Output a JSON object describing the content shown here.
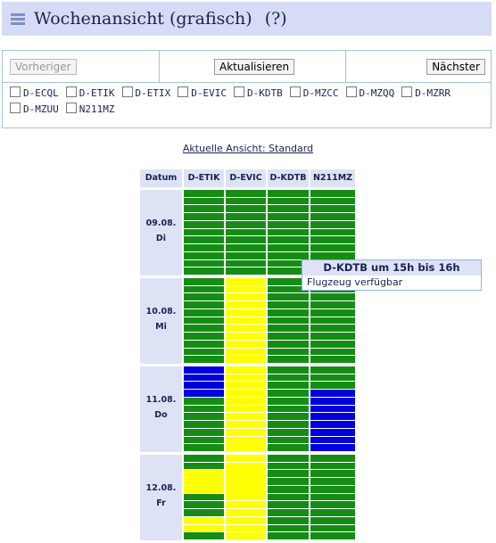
{
  "header": {
    "title": "Wochenansicht (grafisch)",
    "help": "(?)"
  },
  "nav": {
    "prev_label": "Vorheriger",
    "refresh_label": "Aktualisieren",
    "next_label": "Nächster"
  },
  "aircraft": [
    "D-ECQL",
    "D-ETIK",
    "D-ETIX",
    "D-EVIC",
    "D-KDTB",
    "D-MZCC",
    "D-MZQQ",
    "D-MZRR",
    "D-MZUU",
    "N211MZ"
  ],
  "view_link": "Aktuelle Ansicht: Standard",
  "schedule": {
    "date_header": "Datum",
    "columns": [
      "D-ETIK",
      "D-EVIC",
      "D-KDTB",
      "N211MZ"
    ],
    "days": [
      {
        "date": "09.08.",
        "weekday": "Di",
        "slots": [
          "GGGGGGGGGGG",
          "GGGGGGGGGGG",
          "GGGGGGGGGGG",
          "GGGGGGGGGGG"
        ]
      },
      {
        "date": "10.08.",
        "weekday": "Mi",
        "slots": [
          "GGGGGGGGGGG",
          "YYYYYYYYYYY",
          "GGGGGGGGGGG",
          "GGGGGGGGGGG"
        ]
      },
      {
        "date": "11.08.",
        "weekday": "Do",
        "slots": [
          "BBBBGGGGGGG",
          "YYYYYYYYYYY",
          "GGGGGGGGGGG",
          "GGGBBBBBBBB"
        ]
      },
      {
        "date": "12.08.",
        "weekday": "Fr",
        "slots": [
          "GGYYYGGGYYG",
          "YYYYYYYYYYY",
          "GGGGGGGGGGG",
          "GGGGGGGGGGG"
        ]
      }
    ],
    "status_colors": {
      "G": "#158d15",
      "Y": "#ffff00",
      "B": "#0000dd"
    }
  },
  "tooltip": {
    "title": "D-KDTB um 15h bis 16h",
    "text": "Flugzeug verfügbar"
  }
}
